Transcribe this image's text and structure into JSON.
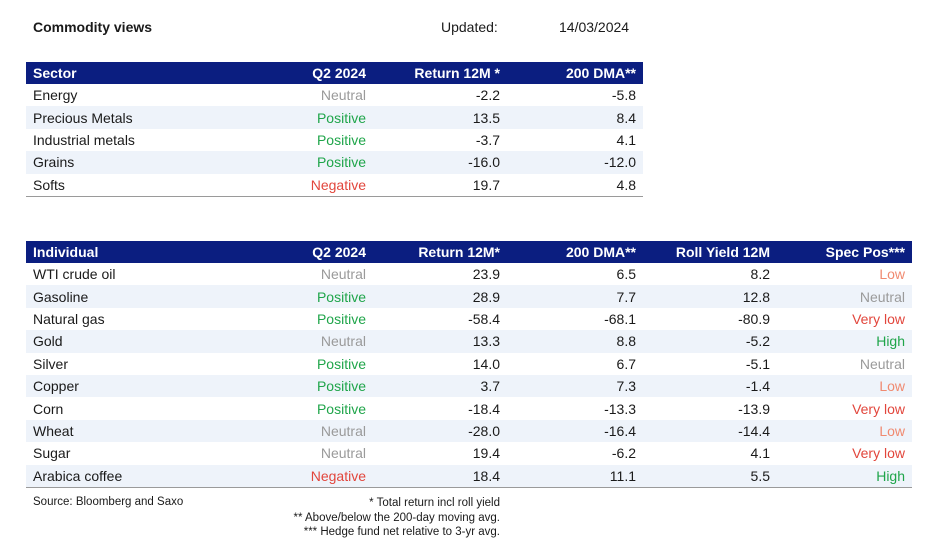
{
  "header": {
    "title": "Commodity views",
    "updated_label": "Updated:",
    "updated_date": "14/03/2024"
  },
  "sector_table": {
    "columns": [
      "Sector",
      "Q2 2024",
      "Return 12M *",
      "200 DMA**"
    ],
    "rows": [
      {
        "name": "Energy",
        "q2": "Neutral",
        "ret": "-2.2",
        "dma": "-5.8"
      },
      {
        "name": "Precious Metals",
        "q2": "Positive",
        "ret": "13.5",
        "dma": "8.4"
      },
      {
        "name": "Industrial metals",
        "q2": "Positive",
        "ret": "-3.7",
        "dma": "4.1"
      },
      {
        "name": "Grains",
        "q2": "Positive",
        "ret": "-16.0",
        "dma": "-12.0"
      },
      {
        "name": "Softs",
        "q2": "Negative",
        "ret": "19.7",
        "dma": "4.8"
      }
    ]
  },
  "individual_table": {
    "columns": [
      "Individual",
      "Q2 2024",
      "Return 12M*",
      "200 DMA**",
      "Roll Yield 12M",
      "Spec Pos***"
    ],
    "rows": [
      {
        "name": "WTI crude oil",
        "q2": "Neutral",
        "ret": "23.9",
        "dma": "6.5",
        "roll": "8.2",
        "spec": "Low"
      },
      {
        "name": "Gasoline",
        "q2": "Positive",
        "ret": "28.9",
        "dma": "7.7",
        "roll": "12.8",
        "spec": "Neutral"
      },
      {
        "name": "Natural gas",
        "q2": "Positive",
        "ret": "-58.4",
        "dma": "-68.1",
        "roll": "-80.9",
        "spec": "Very low"
      },
      {
        "name": "Gold",
        "q2": "Neutral",
        "ret": "13.3",
        "dma": "8.8",
        "roll": "-5.2",
        "spec": "High"
      },
      {
        "name": "Silver",
        "q2": "Positive",
        "ret": "14.0",
        "dma": "6.7",
        "roll": "-5.1",
        "spec": "Neutral"
      },
      {
        "name": "Copper",
        "q2": "Positive",
        "ret": "3.7",
        "dma": "7.3",
        "roll": "-1.4",
        "spec": "Low"
      },
      {
        "name": "Corn",
        "q2": "Positive",
        "ret": "-18.4",
        "dma": "-13.3",
        "roll": "-13.9",
        "spec": "Very low"
      },
      {
        "name": "Wheat",
        "q2": "Neutral",
        "ret": "-28.0",
        "dma": "-16.4",
        "roll": "-14.4",
        "spec": "Low"
      },
      {
        "name": "Sugar",
        "q2": "Neutral",
        "ret": "19.4",
        "dma": "-6.2",
        "roll": "4.1",
        "spec": "Very low"
      },
      {
        "name": "Arabica coffee",
        "q2": "Negative",
        "ret": "18.4",
        "dma": "11.1",
        "roll": "5.5",
        "spec": "High"
      }
    ]
  },
  "colors": {
    "header_bg": "#0b1e80",
    "neutral": "#9a9a9a",
    "positive": "#1fa54a",
    "negative": "#e2463c",
    "low": "#f08a70"
  },
  "footer": {
    "source": "Source: Bloomberg and Saxo",
    "notes": [
      "* Total return incl roll yield",
      "** Above/below the 200-day moving avg.",
      "*** Hedge fund net relative to 3-yr avg."
    ]
  }
}
